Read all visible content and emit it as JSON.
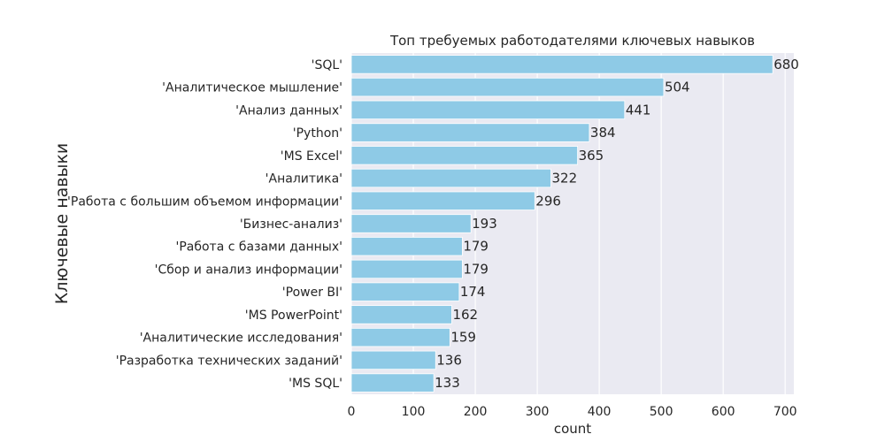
{
  "chart_data": {
    "type": "bar",
    "orientation": "horizontal",
    "title": "Топ требуемых работодателями ключевых навыков",
    "xlabel": "count",
    "ylabel": "Ключевые навыки",
    "categories": [
      "'SQL'",
      "'Аналитическое мышление'",
      "'Анализ данных'",
      "'Python'",
      "'MS Excel'",
      "'Аналитика'",
      "'Работа с большим объемом информации'",
      "'Бизнес-анализ'",
      "'Работа с базами данных'",
      "'Сбор и анализ информации'",
      "'Power BI'",
      "'MS PowerPoint'",
      "'Аналитические исследования'",
      "'Разработка технических заданий'",
      "'MS SQL'"
    ],
    "values": [
      680,
      504,
      441,
      384,
      365,
      322,
      296,
      193,
      179,
      179,
      174,
      162,
      159,
      136,
      133
    ],
    "value_labels": [
      "680",
      "504",
      "441",
      "384",
      "365",
      "322",
      "296",
      "193",
      "179",
      "179",
      "174",
      "162",
      "159",
      "136",
      "133"
    ],
    "xticks": [
      "0",
      "100",
      "200",
      "300",
      "400",
      "500",
      "600",
      "700"
    ],
    "xlim": [
      0,
      714
    ],
    "grid": true,
    "colors": {
      "bar": "#8ecae6",
      "plot_background": "#eaeaf2",
      "grid": "#ffffff",
      "text": "#262626"
    }
  }
}
